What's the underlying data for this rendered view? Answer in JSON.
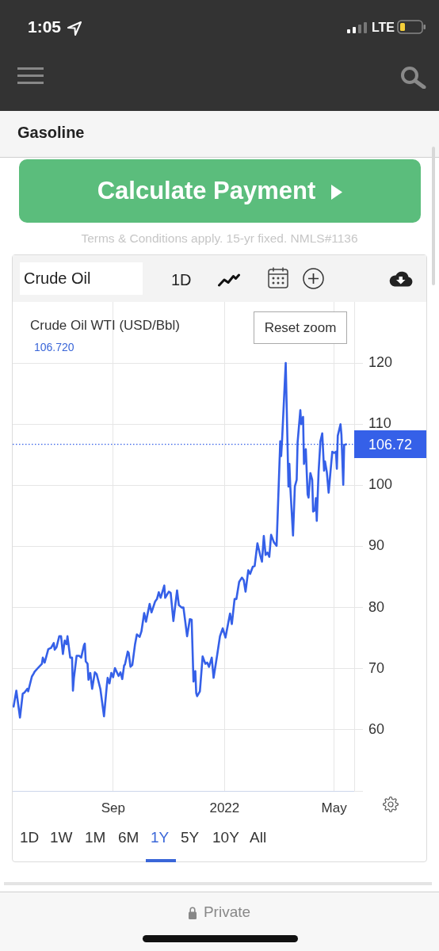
{
  "chart_data": {
    "type": "line",
    "title": "Crude Oil WTI (USD/Bbl)",
    "subtitle": "106.720",
    "x": [
      "2021-05-15",
      "2021-05-18",
      "2021-05-22",
      "2021-05-25",
      "2021-05-27",
      "2021-05-30",
      "2021-05-31",
      "2021-06-04",
      "2021-06-06",
      "2021-06-07",
      "2021-06-10",
      "2021-06-15",
      "2021-06-16",
      "2021-06-18",
      "2021-06-22",
      "2021-06-25",
      "2021-06-28",
      "2021-06-29",
      "2021-07-01",
      "2021-07-04",
      "2021-07-06",
      "2021-07-08",
      "2021-07-10",
      "2021-07-12",
      "2021-07-13",
      "2021-07-16",
      "2021-07-18",
      "2021-07-19",
      "2021-07-20",
      "2021-07-23",
      "2021-07-26",
      "2021-07-28",
      "2021-07-31",
      "2021-08-01",
      "2021-08-02",
      "2021-08-04",
      "2021-08-05",
      "2021-08-07",
      "2021-08-09",
      "2021-08-12",
      "2021-08-14",
      "2021-08-18",
      "2021-08-22",
      "2021-08-25",
      "2021-08-26",
      "2021-08-28",
      "2021-08-30",
      "2021-09-01",
      "2021-09-03",
      "2021-09-07",
      "2021-09-09",
      "2021-09-11",
      "2021-09-13",
      "2021-09-14",
      "2021-09-17",
      "2021-09-18",
      "2021-09-20",
      "2021-09-22",
      "2021-09-25",
      "2021-09-27",
      "2021-09-30",
      "2021-10-02",
      "2021-10-05",
      "2021-10-07",
      "2021-10-11",
      "2021-10-13",
      "2021-10-17",
      "2021-10-19",
      "2021-10-21",
      "2021-10-23",
      "2021-10-27",
      "2021-10-28",
      "2021-11-01",
      "2021-11-03",
      "2021-11-06",
      "2021-11-10",
      "2021-11-12",
      "2021-11-15",
      "2021-11-17",
      "2021-11-19",
      "2021-11-21",
      "2021-11-24",
      "2021-11-26",
      "2021-11-28",
      "2021-11-30",
      "2021-12-01",
      "2021-12-02",
      "2021-12-05",
      "2021-12-08",
      "2021-12-11",
      "2021-12-13",
      "2021-12-15",
      "2021-12-18",
      "2021-12-20",
      "2021-12-24",
      "2021-12-27",
      "2021-12-30",
      "2022-01-02",
      "2022-01-07",
      "2022-01-09",
      "2022-01-12",
      "2022-01-14",
      "2022-01-17",
      "2022-01-20",
      "2022-01-22",
      "2022-01-24",
      "2022-01-27",
      "2022-01-29",
      "2022-02-01",
      "2022-02-03",
      "2022-02-06",
      "2022-02-09",
      "2022-02-11",
      "2022-02-13",
      "2022-02-15",
      "2022-02-17",
      "2022-02-19",
      "2022-02-21",
      "2022-02-24",
      "2022-02-27",
      "2022-03-03",
      "2022-03-04",
      "2022-03-05",
      "2022-03-09",
      "2022-03-12",
      "2022-03-13",
      "2022-03-14",
      "2022-03-17",
      "2022-03-19",
      "2022-03-21",
      "2022-03-22",
      "2022-03-25",
      "2022-03-26",
      "2022-03-28",
      "2022-03-29",
      "2022-03-31",
      "2022-04-02",
      "2022-04-03",
      "2022-04-05",
      "2022-04-07",
      "2022-04-08",
      "2022-04-10",
      "2022-04-11",
      "2022-04-12",
      "2022-04-14",
      "2022-04-16",
      "2022-04-18",
      "2022-04-20",
      "2022-04-21",
      "2022-04-23",
      "2022-04-25",
      "2022-04-27",
      "2022-04-29",
      "2022-05-01",
      "2022-05-03",
      "2022-05-04",
      "2022-05-05",
      "2022-05-08",
      "2022-05-09",
      "2022-05-11",
      "2022-05-12",
      "2022-05-14"
    ],
    "series": [
      {
        "color": "#3560e8",
        "values": [
          63.8,
          66.4,
          62.0,
          65.9,
          66.1,
          66.7,
          66.3,
          68.7,
          69.2,
          69.5,
          70.0,
          70.8,
          71.8,
          71.0,
          73.2,
          73.4,
          74.2,
          73.1,
          73.5,
          75.3,
          75.3,
          72.4,
          74.6,
          74.0,
          75.3,
          71.8,
          71.8,
          66.4,
          68.4,
          72.1,
          72.1,
          71.8,
          73.8,
          74.1,
          71.2,
          70.8,
          68.2,
          69.3,
          66.7,
          69.4,
          69.1,
          66.7,
          62.2,
          67.1,
          68.5,
          67.6,
          69.3,
          68.6,
          70.1,
          68.8,
          69.4,
          68.3,
          70.5,
          70.7,
          72.8,
          72.6,
          70.3,
          70.6,
          74.0,
          75.6,
          75.2,
          76.1,
          79.1,
          77.7,
          80.6,
          79.2,
          81.0,
          81.4,
          82.5,
          81.6,
          83.6,
          81.6,
          82.6,
          82.4,
          77.8,
          82.8,
          80.4,
          80.0,
          80.0,
          77.7,
          75.3,
          78.1,
          78.0,
          67.9,
          69.6,
          66.0,
          65.5,
          66.3,
          72.0,
          70.8,
          71.0,
          70.3,
          71.8,
          68.5,
          72.3,
          75.3,
          76.6,
          75.1,
          79.0,
          77.3,
          81.4,
          81.4,
          84.2,
          84.9,
          84.5,
          82.6,
          86.1,
          85.5,
          86.7,
          86.8,
          90.5,
          88.6,
          87.5,
          91.7,
          88.6,
          89.0,
          88.3,
          91.9,
          90.7,
          90.1,
          107.2,
          104.8,
          107.4,
          120.0,
          99.8,
          103.5,
          99.8,
          91.8,
          99.8,
          100.9,
          107.0,
          112.3,
          110.0,
          111.2,
          103.5,
          105.9,
          98.5,
          98.0,
          102.0,
          100.9,
          95.7,
          95.9,
          97.9,
          94.2,
          102.2,
          107.2,
          108.5,
          102.4,
          103.9,
          102.2,
          98.8,
          102.2,
          105.5,
          105.3,
          105.5,
          102.7,
          108.1,
          110.0,
          108.3,
          100.1,
          106.6,
          106.7
        ]
      }
    ],
    "xlim": [
      "2021-05-14",
      "2022-05-23"
    ],
    "xticks": [
      {
        "value": "2021-09-01",
        "label": "Sep"
      },
      {
        "value": "2022-01-01",
        "label": "2022"
      },
      {
        "value": "2022-05-01",
        "label": "May"
      }
    ],
    "ylim": [
      50,
      130
    ],
    "yticks": [
      {
        "value": 50,
        "label": null
      },
      60,
      70,
      80,
      90,
      100,
      110,
      120
    ],
    "grid": true,
    "ref_lines": [
      {
        "axis": "y",
        "value": 106.72,
        "label": "106.72",
        "color": "#3560e8",
        "line_style": "dotted"
      }
    ],
    "annotations": [
      "1:05",
      "LTE",
      "Gasoline",
      "Calculate Payment",
      "Terms & Conditions apply. 15-yr fixed. NMLS#1136",
      "Crude Oil",
      "1D",
      "Reset zoom",
      "1D",
      "1W",
      "1M",
      "6M",
      "1Y",
      "5Y",
      "10Y",
      "All",
      "Private"
    ]
  }
}
